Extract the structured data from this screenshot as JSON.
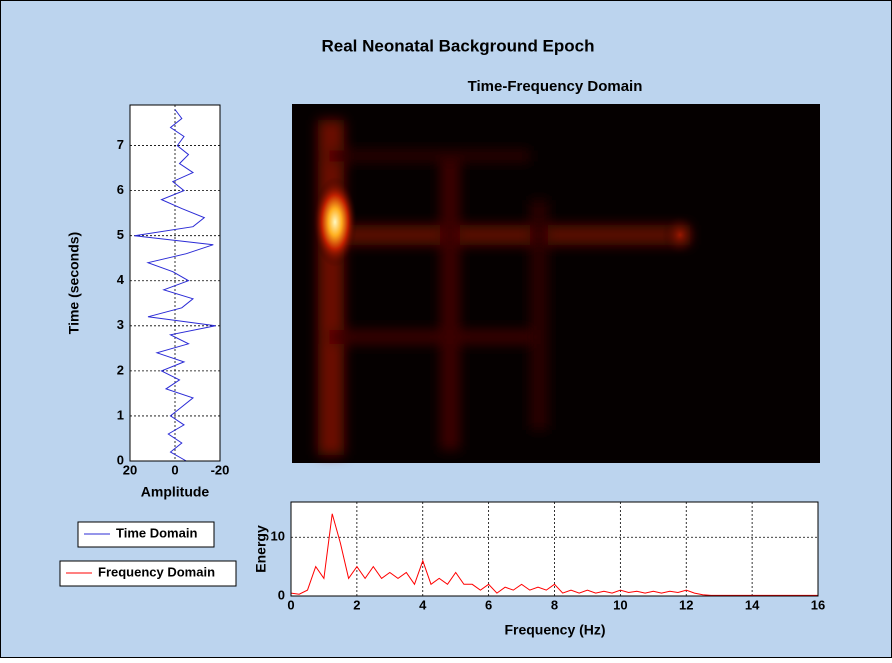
{
  "title": "Real Neonatal Background Epoch",
  "chart_data": [
    {
      "type": "line",
      "orientation": "vertical",
      "xlabel": "Time (seconds)",
      "ylabel": "Amplitude",
      "x": [
        0,
        0.2,
        0.4,
        0.6,
        0.8,
        1.0,
        1.2,
        1.4,
        1.6,
        1.8,
        2.0,
        2.2,
        2.4,
        2.6,
        2.8,
        3.0,
        3.2,
        3.4,
        3.6,
        3.8,
        4.0,
        4.2,
        4.4,
        4.6,
        4.8,
        5.0,
        5.2,
        5.4,
        5.6,
        5.8,
        6.0,
        6.2,
        6.4,
        6.6,
        6.8,
        7.0,
        7.2,
        7.4,
        7.6,
        7.8
      ],
      "series": [
        {
          "name": "Time Domain",
          "color": "#2b2bd6",
          "values": [
            -5,
            2,
            -3,
            3,
            -4,
            2,
            -3,
            -8,
            4,
            -2,
            6,
            -4,
            8,
            -6,
            2,
            -18,
            12,
            -3,
            -8,
            5,
            -6,
            1,
            12,
            -5,
            -17,
            18,
            -8,
            -13,
            -3,
            6,
            -4,
            1,
            -8,
            -2,
            -6,
            -1,
            -4,
            2,
            -3,
            0
          ]
        }
      ],
      "xlim": [
        0,
        7.9
      ],
      "xticks": [
        0,
        1,
        2,
        3,
        4,
        5,
        6,
        7
      ],
      "ylim": [
        20,
        -20
      ],
      "yticks": [
        20,
        0,
        -20
      ],
      "grid": true
    },
    {
      "type": "image",
      "title": "Time-Frequency Domain"
    },
    {
      "type": "line",
      "orientation": "horizontal",
      "xlabel": "Frequency (Hz)",
      "ylabel": "Energy",
      "x": [
        0,
        0.25,
        0.5,
        0.75,
        1,
        1.25,
        1.5,
        1.75,
        2,
        2.25,
        2.5,
        2.75,
        3,
        3.25,
        3.5,
        3.75,
        4,
        4.25,
        4.5,
        4.75,
        5,
        5.25,
        5.5,
        5.75,
        6,
        6.25,
        6.5,
        6.75,
        7,
        7.25,
        7.5,
        7.75,
        8,
        8.25,
        8.5,
        8.75,
        9,
        9.25,
        9.5,
        9.75,
        10,
        10.25,
        10.5,
        10.75,
        11,
        11.25,
        11.5,
        11.75,
        12,
        12.25,
        12.5,
        12.75,
        13,
        13.5,
        14,
        14.5,
        15,
        15.5,
        16
      ],
      "series": [
        {
          "name": "Frequency Domain",
          "color": "#ff0000",
          "values": [
            0.5,
            0.3,
            1,
            5,
            3,
            14,
            9,
            3,
            5,
            3,
            5,
            3,
            4,
            3,
            4,
            2,
            6,
            2,
            3,
            2,
            4,
            2,
            2,
            1,
            2,
            0.5,
            1.5,
            1,
            2,
            1,
            1.5,
            1,
            2,
            0.5,
            1,
            0.5,
            1,
            0.5,
            0.8,
            0.5,
            1,
            0.6,
            0.8,
            0.5,
            0.8,
            0.5,
            0.8,
            0.6,
            1,
            0.5,
            0.2,
            0.1,
            0.1,
            0.1,
            0.1,
            0.1,
            0.1,
            0.1,
            0.1
          ]
        }
      ],
      "xlim": [
        0,
        16
      ],
      "xticks": [
        0,
        2,
        4,
        6,
        8,
        10,
        12,
        14,
        16
      ],
      "ylim": [
        0,
        16
      ],
      "yticks": [
        0,
        10
      ],
      "grid": true
    }
  ]
}
